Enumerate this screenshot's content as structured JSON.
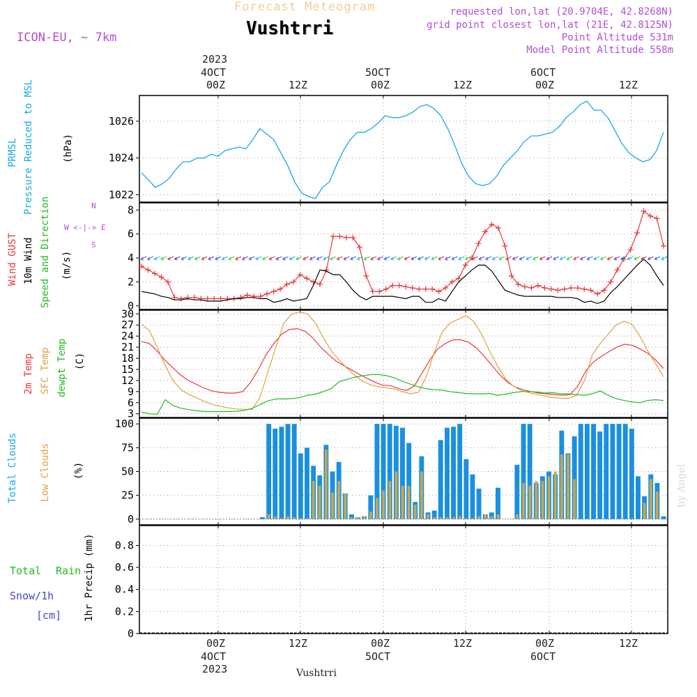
{
  "header": {
    "title": "Forecast Meteogram",
    "location": "Vushtrri",
    "model": "ICON-EU, ~ 7km",
    "requested": "requested lon,lat (20.9704E, 42.8268N)",
    "gridpoint": "grid point closest lon,lat (21E, 42.8125N)",
    "point_altitude": "Point Altitude 531m",
    "model_altitude": "Model Point Altitude 558m",
    "footer": "Vushtrri",
    "credit": "by Angel"
  },
  "time_axis": {
    "top_year": "2023",
    "top_days": [
      "4OCT",
      "5OCT",
      "6OCT"
    ],
    "hour_labels": [
      "00Z",
      "12Z",
      "00Z",
      "12Z",
      "00Z",
      "12Z"
    ],
    "bottom_days": [
      "4OCT",
      "5OCT",
      "6OCT"
    ],
    "bottom_year": "2023"
  },
  "colors": {
    "pressure": "#1aa7e8",
    "gust": "#e8383d",
    "wind": "#000000",
    "temp2m": "#e8383d",
    "sfc": "#e0a040",
    "dewpt": "#22bb22",
    "total_clouds": "#1a8fe0",
    "low_clouds": "#c8a850",
    "rain": "#22bb22",
    "snow": "#4444dd",
    "purple": "#b050d0"
  },
  "labels": {
    "prmsl": "PRMSL",
    "pressure_msl": "Pressure Reduced to MSL",
    "hpa": "(hPa)",
    "wind_gust": "Wind GUST",
    "wind10m": "10m Wind",
    "speed_dir": "Speed and Direction",
    "ms": "(m/s)",
    "compass_n": "N",
    "compass_s": "S",
    "compass_ew": "W <-|-> E",
    "temp2m": "2m Temp",
    "sfc": "SFC Temp",
    "dewpt": "dewpt Temp",
    "c": "(C)",
    "total_clouds": "Total Clouds",
    "low_clouds": "Low Clouds",
    "pct": "(%)",
    "total": "Total",
    "rain": "Rain",
    "snow": "Snow/1h",
    "cm": "[cm]",
    "precip": "1hr Precip (mm)"
  },
  "chart_data": [
    {
      "type": "line",
      "panel": "pressure",
      "yticks": [
        "1022",
        "1024",
        "1026"
      ],
      "ylim": [
        1021.6,
        1027.4
      ],
      "series": [
        {
          "name": "PRMSL",
          "values": [
            1023.2,
            1022.8,
            1022.4,
            1022.6,
            1022.9,
            1023.4,
            1023.8,
            1023.8,
            1024.0,
            1024.0,
            1024.2,
            1024.1,
            1024.4,
            1024.5,
            1024.6,
            1024.5,
            1025.0,
            1025.6,
            1025.3,
            1025.0,
            1024.3,
            1023.6,
            1022.7,
            1022.1,
            1021.9,
            1021.8,
            1022.4,
            1022.7,
            1023.6,
            1024.4,
            1025.0,
            1025.4,
            1025.4,
            1025.6,
            1025.9,
            1026.3,
            1026.2,
            1026.2,
            1026.3,
            1026.5,
            1026.8,
            1026.9,
            1026.7,
            1026.3,
            1025.6,
            1024.7,
            1023.7,
            1023.0,
            1022.6,
            1022.5,
            1022.6,
            1023.0,
            1023.6,
            1024.0,
            1024.4,
            1024.9,
            1025.2,
            1025.2,
            1025.3,
            1025.4,
            1025.7,
            1026.2,
            1026.5,
            1026.9,
            1027.1,
            1026.6,
            1026.6,
            1026.2,
            1025.5,
            1024.8,
            1024.3,
            1024.0,
            1023.8,
            1023.9,
            1024.4,
            1025.4
          ]
        }
      ]
    },
    {
      "type": "line",
      "panel": "wind",
      "yticks": [
        "0",
        "2",
        "4",
        "6",
        "8"
      ],
      "ylim": [
        -0.3,
        8.6
      ],
      "series": [
        {
          "name": "Wind GUST",
          "values": [
            3.3,
            3.0,
            2.7,
            2.4,
            2.0,
            0.7,
            0.6,
            0.7,
            0.7,
            0.6,
            0.6,
            0.6,
            0.6,
            0.6,
            0.6,
            0.7,
            0.9,
            0.8,
            0.8,
            1.0,
            1.2,
            1.4,
            1.8,
            2.0,
            2.6,
            2.3,
            2.0,
            1.8,
            3.0,
            5.8,
            5.8,
            5.7,
            5.7,
            4.9,
            2.5,
            1.2,
            1.2,
            1.4,
            1.7,
            1.7,
            1.6,
            1.5,
            1.4,
            1.4,
            1.4,
            1.2,
            1.5,
            2.0,
            2.3,
            3.4,
            4.0,
            5.2,
            6.2,
            6.8,
            6.5,
            5.0,
            2.5,
            1.8,
            1.6,
            1.5,
            1.7,
            1.5,
            1.4,
            1.3,
            1.4,
            1.5,
            1.5,
            1.4,
            1.3,
            1.0,
            1.3,
            2.0,
            3.0,
            3.9,
            4.7,
            6.1,
            7.9,
            7.5,
            7.3,
            5.0
          ]
        },
        {
          "name": "10m Wind",
          "values": [
            1.2,
            1.1,
            1.0,
            0.8,
            0.7,
            0.5,
            0.5,
            0.6,
            0.5,
            0.5,
            0.4,
            0.4,
            0.4,
            0.5,
            0.6,
            0.6,
            0.7,
            0.7,
            0.6,
            0.6,
            0.3,
            0.4,
            0.6,
            0.4,
            0.5,
            0.6,
            1.7,
            3.0,
            2.9,
            2.6,
            2.6,
            2.0,
            1.3,
            0.8,
            0.5,
            0.8,
            0.8,
            0.8,
            0.8,
            0.7,
            0.6,
            0.8,
            0.8,
            0.3,
            0.3,
            0.6,
            0.4,
            1.2,
            2.0,
            2.5,
            3.0,
            3.4,
            3.4,
            2.9,
            2.1,
            1.3,
            1.1,
            0.9,
            0.8,
            0.8,
            0.8,
            0.8,
            0.8,
            0.7,
            0.7,
            0.7,
            0.6,
            0.3,
            0.4,
            0.2,
            0.4,
            1.1,
            1.6,
            2.2,
            2.8,
            3.4,
            3.9,
            3.4,
            2.5,
            1.7
          ]
        }
      ]
    },
    {
      "type": "line",
      "panel": "temperature",
      "yticks": [
        "3",
        "6",
        "9",
        "12",
        "15",
        "18",
        "21",
        "24",
        "27",
        "30"
      ],
      "ylim": [
        2,
        31
      ],
      "series": [
        {
          "name": "2m Temp",
          "values": [
            22.5,
            22.0,
            20.0,
            17.5,
            15.5,
            13.5,
            12.0,
            11.0,
            10.0,
            9.2,
            8.8,
            8.6,
            8.6,
            9.0,
            11.5,
            15.0,
            19.0,
            22.0,
            24.5,
            25.8,
            26.0,
            25.3,
            23.5,
            21.0,
            19.0,
            17.2,
            16.0,
            14.8,
            13.6,
            12.5,
            11.5,
            10.7,
            10.6,
            9.8,
            9.3,
            10.5,
            14.0,
            17.5,
            20.5,
            22.0,
            23.0,
            23.0,
            22.3,
            20.8,
            18.5,
            16.0,
            13.5,
            11.5,
            10.2,
            9.5,
            9.0,
            8.6,
            8.4,
            8.2,
            8.0,
            8.2,
            10.5,
            14.5,
            17.0,
            18.5,
            19.8,
            21.0,
            21.8,
            21.5,
            20.5,
            19.3,
            17.5,
            15.3
          ]
        },
        {
          "name": "SFC Temp",
          "values": [
            27.2,
            25.5,
            21.0,
            16.0,
            12.0,
            9.5,
            8.2,
            7.3,
            6.3,
            5.5,
            5.0,
            4.6,
            4.3,
            4.2,
            4.2,
            7.5,
            14.5,
            21.0,
            27.5,
            30.0,
            30.5,
            30.0,
            27.5,
            23.5,
            20.0,
            17.5,
            15.3,
            13.3,
            11.8,
            10.8,
            10.3,
            10.0,
            9.7,
            9.0,
            8.4,
            8.8,
            13.0,
            19.5,
            25.0,
            27.5,
            28.5,
            29.5,
            28.0,
            24.5,
            20.0,
            16.0,
            12.5,
            10.5,
            9.3,
            8.7,
            8.2,
            7.8,
            7.4,
            7.2,
            7.2,
            8.0,
            12.0,
            19.0,
            22.0,
            24.5,
            27.0,
            28.0,
            27.2,
            24.0,
            20.0,
            16.5,
            13.0
          ]
        },
        {
          "name": "dewpt Temp",
          "values": [
            3.5,
            3.0,
            2.9,
            6.8,
            5.2,
            4.5,
            4.1,
            3.8,
            3.6,
            3.6,
            3.6,
            3.6,
            3.7,
            3.9,
            4.5,
            5.5,
            6.5,
            7.0,
            7.0,
            7.1,
            7.4,
            8.0,
            8.3,
            9.0,
            9.8,
            11.7,
            12.3,
            12.9,
            13.3,
            13.6,
            13.6,
            13.3,
            12.7,
            11.8,
            11.0,
            10.3,
            9.8,
            9.5,
            9.4,
            9.0,
            8.7,
            8.5,
            8.4,
            8.4,
            8.5,
            8.0,
            8.3,
            8.7,
            9.0,
            9.0,
            8.9,
            8.6,
            8.7,
            8.4,
            8.4,
            8.2,
            8.0,
            8.4,
            9.2,
            8.0,
            7.1,
            6.6,
            6.2,
            6.0,
            6.6,
            6.8,
            6.6
          ]
        }
      ]
    },
    {
      "type": "bar",
      "panel": "clouds",
      "yticks": [
        "0",
        "25",
        "50",
        "75",
        "100"
      ],
      "ylim": [
        -6,
        106
      ],
      "series": [
        {
          "name": "Total Clouds",
          "values": [
            0,
            0,
            0,
            0,
            0,
            0,
            0,
            0,
            0,
            0,
            0,
            0,
            0,
            0,
            0,
            0,
            0,
            0,
            0,
            2,
            100,
            95,
            97,
            100,
            100,
            69,
            75,
            56,
            46,
            78,
            50,
            60,
            27,
            5,
            2,
            3,
            25,
            100,
            100,
            100,
            98,
            96,
            80,
            18,
            66,
            7,
            9,
            83,
            96,
            97,
            100,
            63,
            47,
            32,
            5,
            7,
            33,
            0,
            0,
            57,
            100,
            100,
            38,
            45,
            50,
            47,
            93,
            69,
            87,
            100,
            100,
            100,
            92,
            100,
            100,
            100,
            100,
            95,
            45,
            24,
            47,
            38,
            3
          ]
        },
        {
          "name": "Low Clouds",
          "values": [
            0,
            0,
            0,
            0,
            0,
            0,
            0,
            0,
            0,
            0,
            0,
            0,
            0,
            0,
            0,
            0,
            0,
            0,
            0,
            0,
            5,
            3,
            1,
            3,
            2,
            1,
            1,
            40,
            35,
            73,
            28,
            40,
            27,
            2,
            2,
            3,
            8,
            22,
            30,
            40,
            50,
            35,
            35,
            15,
            50,
            5,
            2,
            2,
            2,
            2,
            3,
            1,
            1,
            3,
            5,
            3,
            5,
            0,
            0,
            5,
            38,
            35,
            40,
            40,
            45,
            50,
            68,
            68,
            42,
            0,
            0,
            0,
            0,
            0,
            0,
            0,
            0,
            0,
            0,
            17,
            42,
            29,
            0
          ]
        }
      ]
    },
    {
      "type": "bar",
      "panel": "precipitation",
      "yticks": [
        "0",
        "0.2",
        "0.4",
        "0.6",
        "0.8"
      ],
      "ylim": [
        0,
        0.98
      ],
      "series": [
        {
          "name": "Total Rain",
          "values": []
        }
      ]
    }
  ]
}
